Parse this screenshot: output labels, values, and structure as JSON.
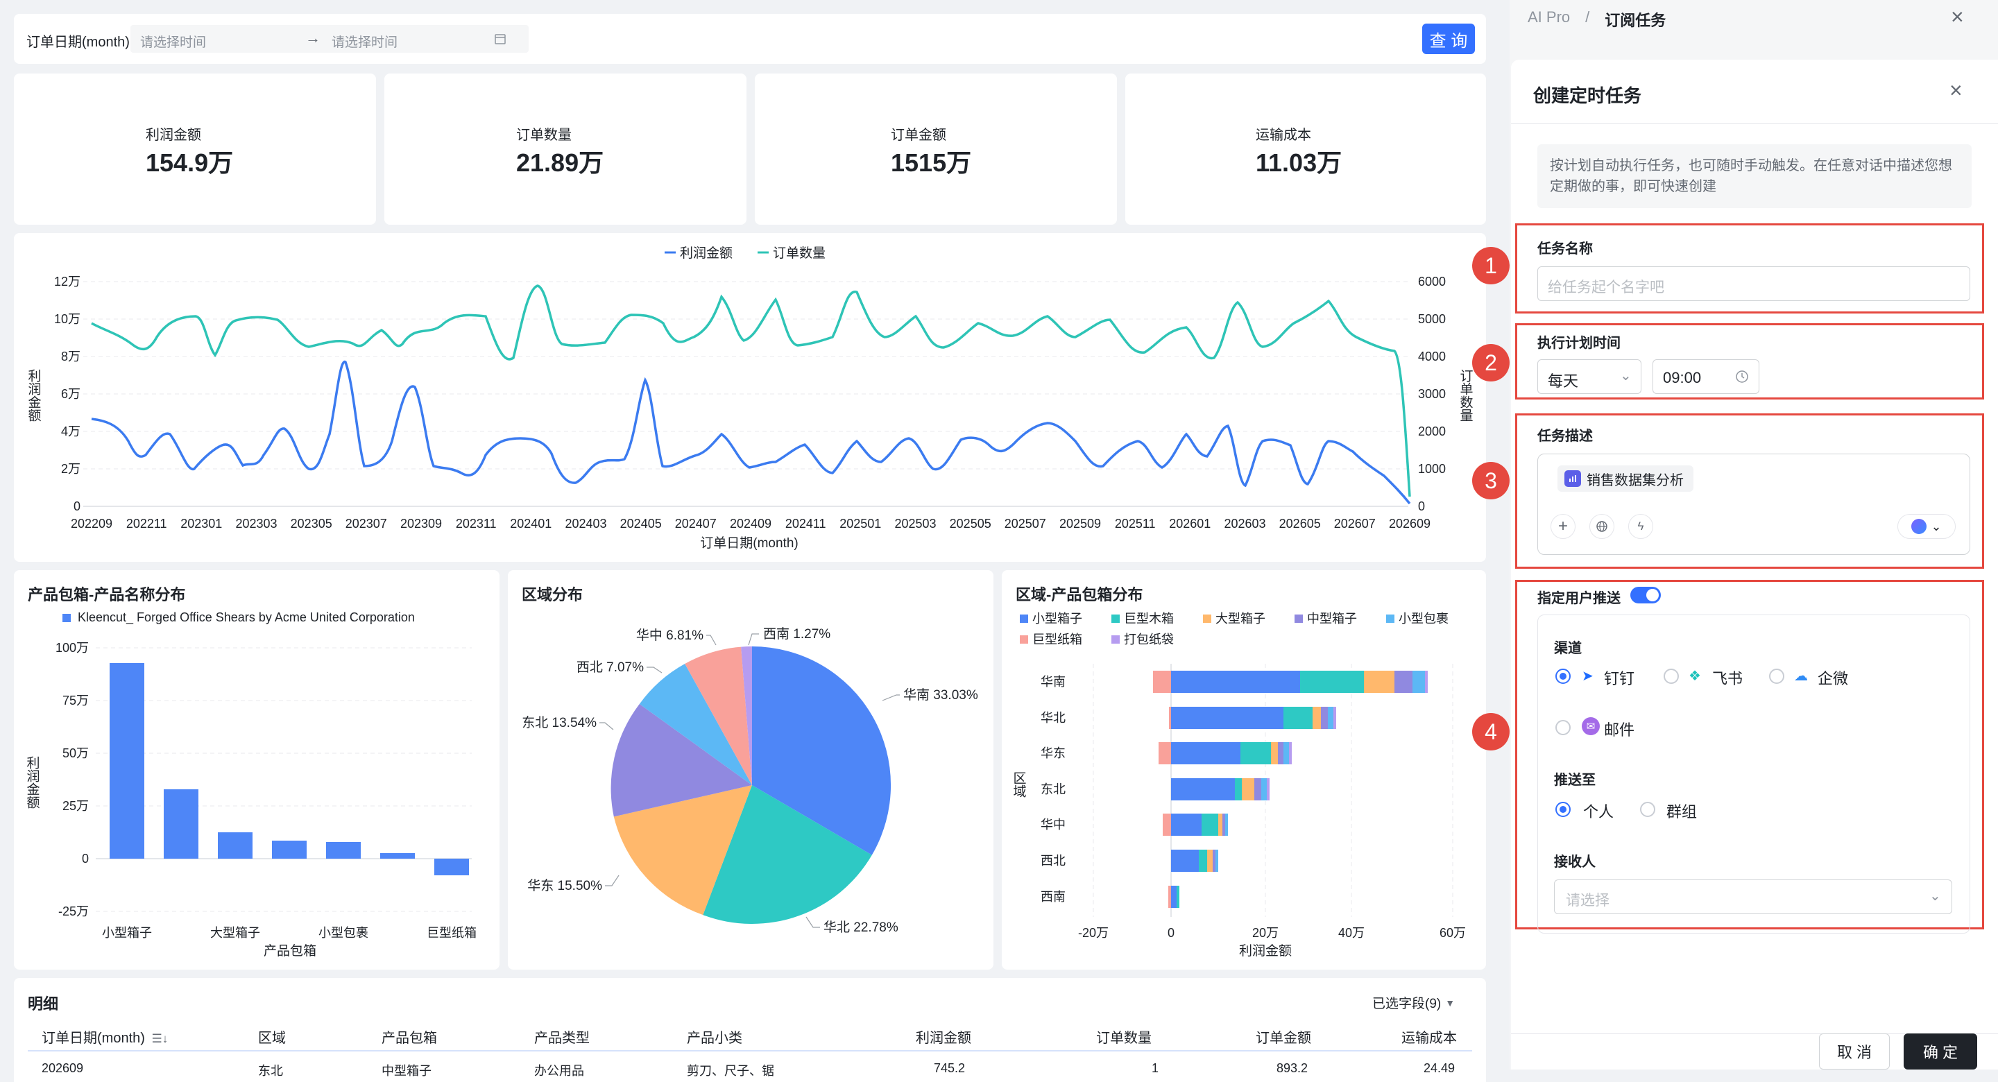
{
  "filter": {
    "label": "订单日期(month)",
    "start_placeholder": "请选择时间",
    "end_placeholder": "请选择时间",
    "query_button": "查 询"
  },
  "kpis": [
    {
      "label": "利润金额",
      "value": "154.9万"
    },
    {
      "label": "订单数量",
      "value": "21.89万"
    },
    {
      "label": "订单金额",
      "value": "1515万"
    },
    {
      "label": "运输成本",
      "value": "11.03万"
    }
  ],
  "line_chart": {
    "legend": [
      "利润金额",
      "订单数量"
    ],
    "y_left_ticks": [
      "12万",
      "10万",
      "8万",
      "6万",
      "4万",
      "2万",
      "0"
    ],
    "y_right_ticks": [
      "6000",
      "5000",
      "4000",
      "3000",
      "2000",
      "1000",
      "0"
    ],
    "y_left_label": "利润金额",
    "y_right_label": "订单数量",
    "x_ticks": [
      "202209",
      "202211",
      "202301",
      "202303",
      "202305",
      "202307",
      "202309",
      "202311",
      "202401",
      "202403",
      "202405",
      "202407",
      "202409",
      "202411",
      "202501",
      "202503",
      "202505",
      "202507",
      "202509",
      "202511",
      "202601",
      "202603",
      "202605",
      "202607",
      "202609"
    ],
    "x_label": "订单日期(month)"
  },
  "bar_chart": {
    "title": "产品包箱-产品名称分布",
    "legend": "Kleencut_ Forged Office Shears by Acme United Corporation",
    "y_ticks": [
      "100万",
      "75万",
      "50万",
      "25万",
      "0",
      "-25万"
    ],
    "y_label": "利润金额",
    "x_ticks": [
      "小型箱子",
      "大型箱子",
      "小型包裹",
      "巨型纸箱"
    ],
    "x_label": "产品包箱"
  },
  "pie_chart": {
    "title": "区域分布",
    "labels": [
      "华南 33.03%",
      "华北 22.78%",
      "华东 15.50%",
      "东北 13.54%",
      "西北 7.07%",
      "华中 6.81%",
      "西南 1.27%"
    ]
  },
  "stack_chart": {
    "title": "区域-产品包箱分布",
    "legend": [
      "小型箱子",
      "巨型木箱",
      "大型箱子",
      "中型箱子",
      "小型包裹",
      "巨型纸箱",
      "打包纸袋"
    ],
    "categories": [
      "华南",
      "华北",
      "华东",
      "东北",
      "华中",
      "西北",
      "西南"
    ],
    "y_label": "区域",
    "x_ticks": [
      "-20万",
      "0",
      "20万",
      "40万",
      "60万"
    ],
    "x_label": "利润金额"
  },
  "table": {
    "title": "明细",
    "fields_button": "已选字段(9)",
    "headers": [
      "订单日期(month)",
      "区域",
      "产品包箱",
      "产品类型",
      "产品小类",
      "利润金额",
      "订单数量",
      "订单金额",
      "运输成本"
    ],
    "row": [
      "202609",
      "东北",
      "中型箱子",
      "办公用品",
      "剪刀、尺子、锯",
      "745.2",
      "1",
      "893.2",
      "24.49"
    ]
  },
  "panel": {
    "breadcrumb_root": "AI Pro",
    "breadcrumb_sep": "/",
    "breadcrumb_current": "订阅任务",
    "dialog_title": "创建定时任务",
    "intro": "按计划自动执行任务，也可随时手动触发。在任意对话中描述您想定期做的事，即可快速创建",
    "task_name_label": "任务名称",
    "task_name_placeholder": "给任务起个名字吧",
    "schedule_label": "执行计划时间",
    "schedule_freq": "每天",
    "schedule_time": "09:00",
    "desc_label": "任务描述",
    "desc_chip": "销售数据集分析",
    "push_label": "指定用户推送",
    "channel_label": "渠道",
    "channels": [
      "钉钉",
      "飞书",
      "企微",
      "邮件"
    ],
    "push_to_label": "推送至",
    "push_to": [
      "个人",
      "群组"
    ],
    "receiver_label": "接收人",
    "receiver_placeholder": "请选择",
    "cancel": "取 消",
    "confirm": "确 定",
    "badges": [
      "1",
      "2",
      "3",
      "4"
    ]
  },
  "colors": {
    "primary": "#3370ff",
    "line1": "#3b7bf0",
    "line2": "#2ec4b6",
    "red": "#e5483f"
  }
}
